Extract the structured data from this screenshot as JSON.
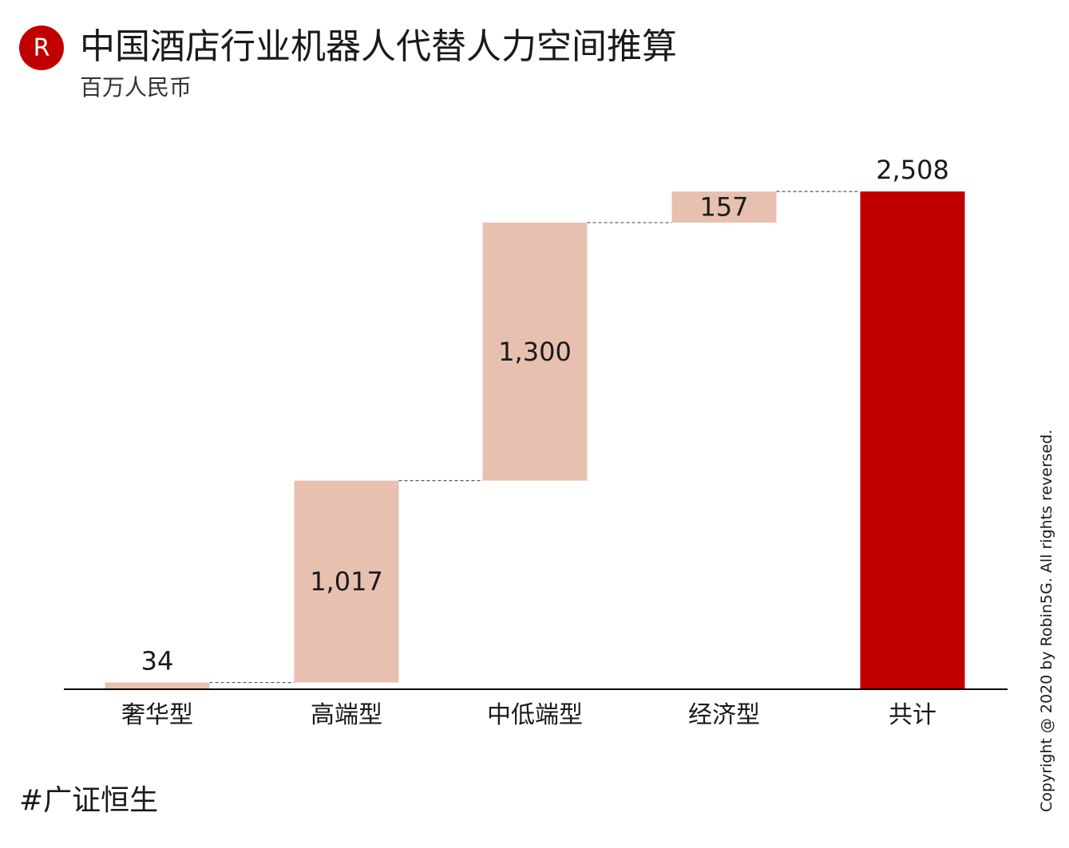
{
  "header": {
    "logo_letter": "R",
    "title": "中国酒店行业机器人代替人力空间推算",
    "subtitle": "百万人民币"
  },
  "chart_data": {
    "type": "waterfall",
    "title": "中国酒店行业机器人代替人力空间推算",
    "subtitle": "百万人民币",
    "categories": [
      "奢华型",
      "高端型",
      "中低端型",
      "经济型",
      "共计"
    ],
    "values": [
      34,
      1017,
      1300,
      157,
      2508
    ],
    "value_labels": [
      "34",
      "1,017",
      "1,300",
      "157",
      "2,508"
    ],
    "is_total": [
      false,
      false,
      false,
      false,
      true
    ],
    "ylim": [
      0,
      2508
    ],
    "connector_lines": "dashed",
    "grid": false,
    "legend": "none",
    "colors": {
      "increment": "#e8c0b0",
      "total": "#c00000",
      "axis": "#000000",
      "connector": "#555555"
    }
  },
  "footer": {
    "tag": "#广证恒生",
    "copyright": "Copyright @ 2020 by Robin5G. All rights reversed."
  }
}
